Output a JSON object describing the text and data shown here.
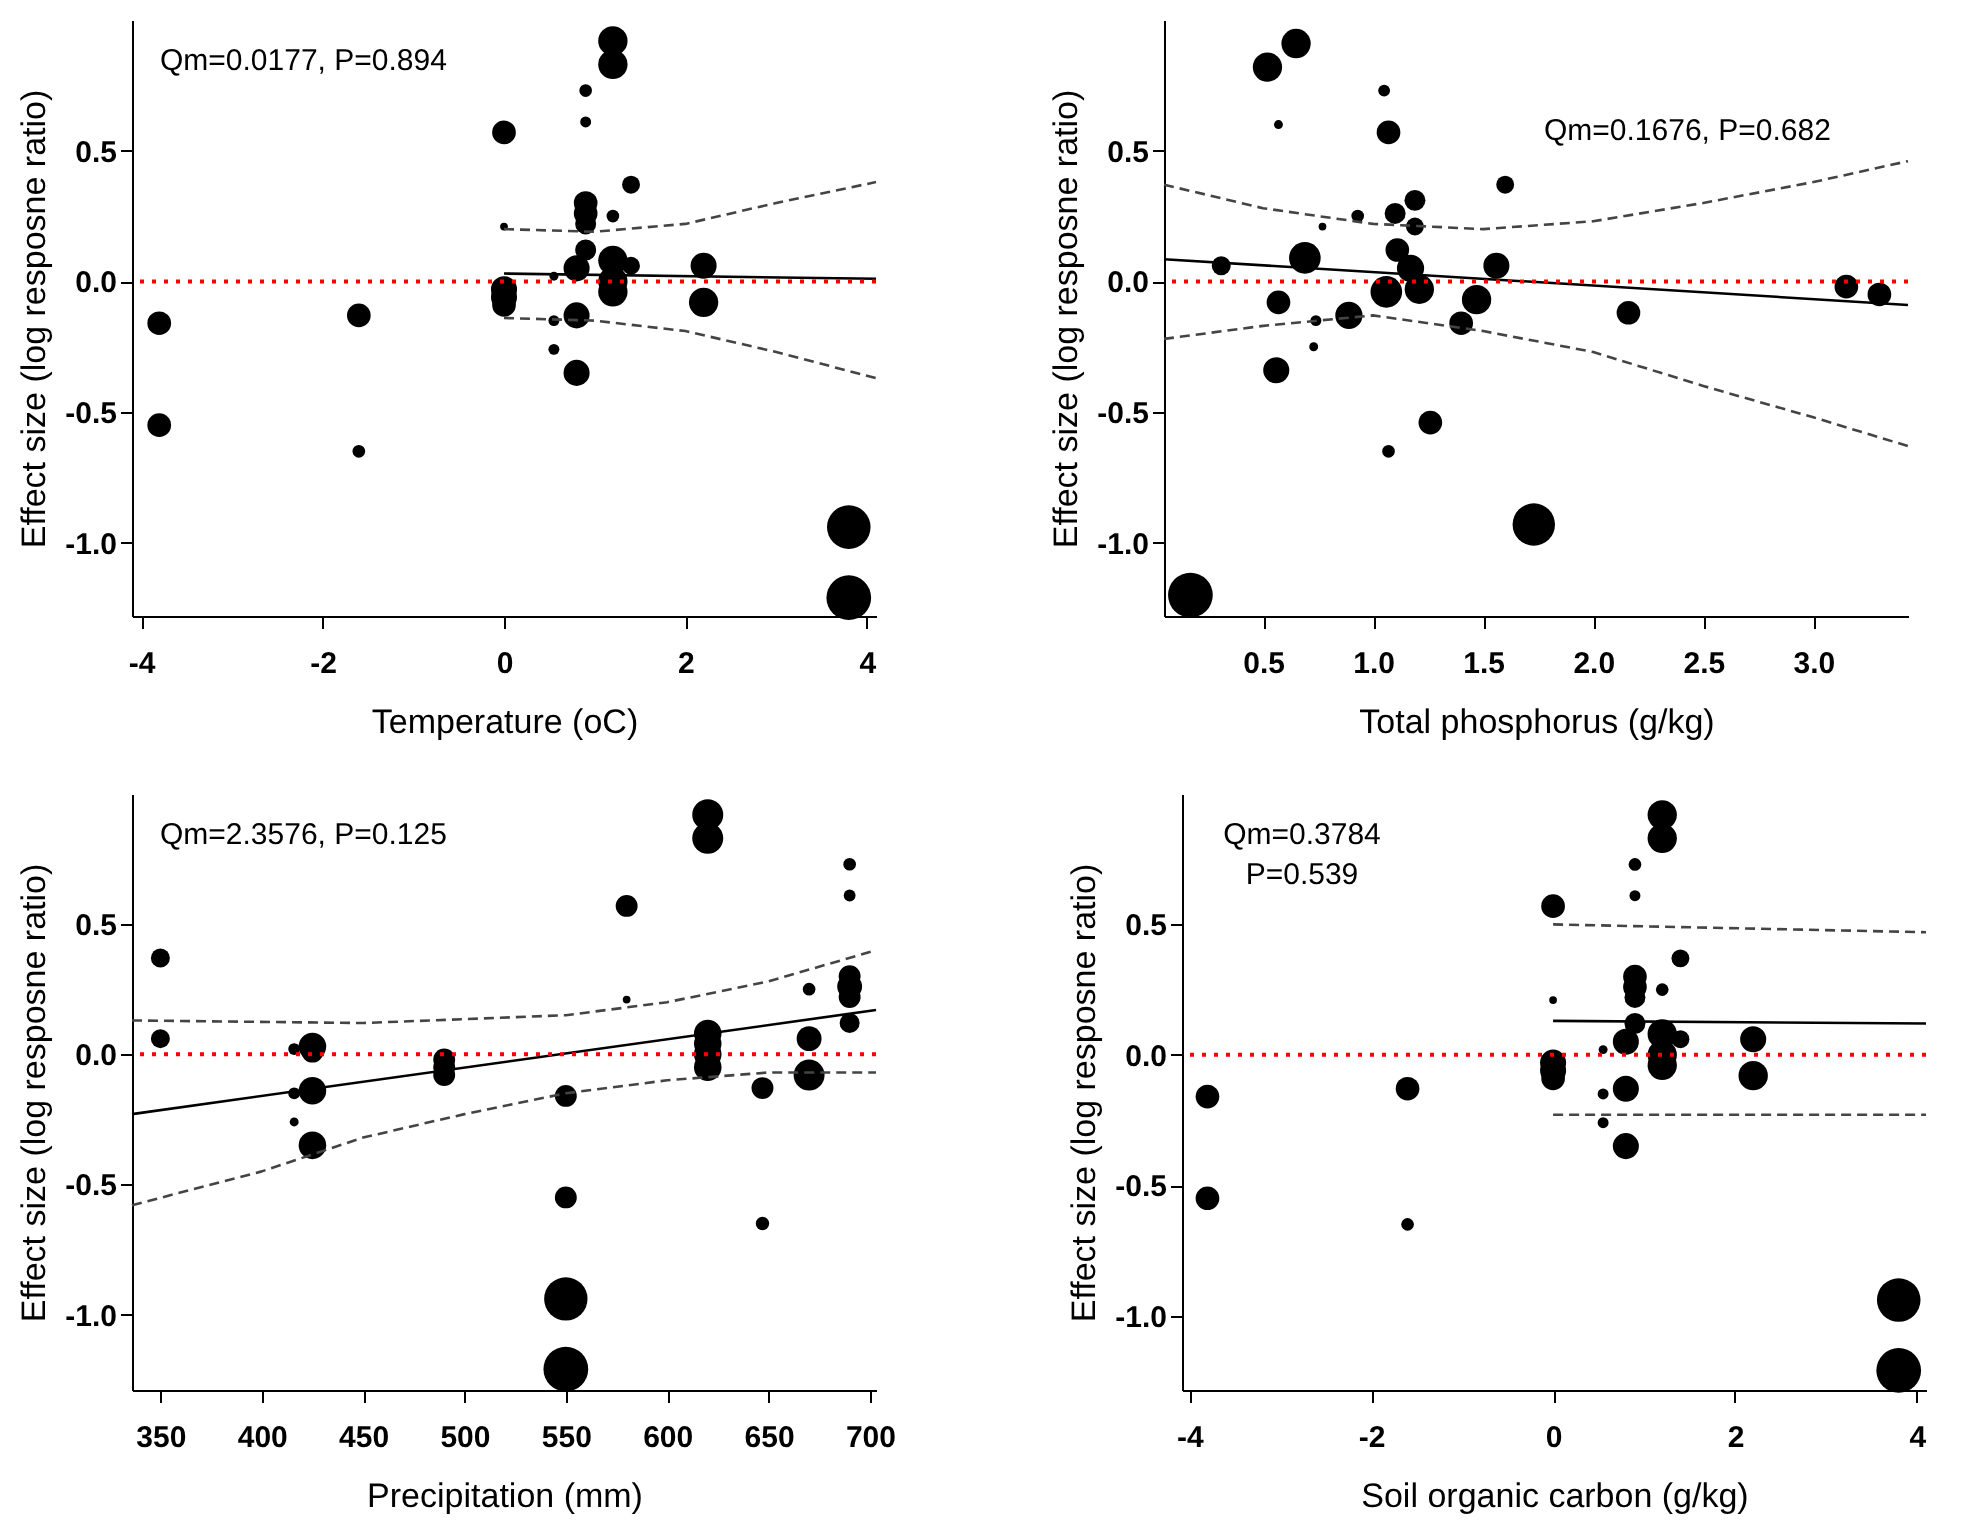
{
  "chart_data": [
    {
      "type": "bubble",
      "xlabel": "Temperature (oC)",
      "ylabel": "Effect size (log resposne ratio)",
      "annotations": [
        "Qm=0.0177, P=0.894"
      ],
      "grid": false,
      "legend": false,
      "xlim": [
        -4.1,
        4.1
      ],
      "xticks": [
        -4,
        -2,
        0,
        2,
        4
      ],
      "ylim": [
        -1.28,
        1.0
      ],
      "yticks": [
        {
          "value": -1,
          "label": "-1.0"
        },
        {
          "value": -0.5,
          "label": "-0.5"
        },
        {
          "value": 0,
          "label": "0.0"
        },
        {
          "value": 0.5,
          "label": "0.5"
        }
      ],
      "ref_lines": [
        {
          "axis": "y",
          "value": 0,
          "color": "#ff0000",
          "line_style": "dotted"
        }
      ],
      "series": [
        {
          "marker": "circle",
          "color": "#000000",
          "x": [
            -3.8,
            -3.8,
            -1.6,
            -1.6,
            0,
            0,
            0,
            0,
            0,
            0.55,
            0.55,
            0.55,
            0.8,
            0.8,
            0.8,
            0.9,
            0.9,
            0.9,
            0.9,
            0.9,
            0.9,
            1.2,
            1.2,
            1.2,
            1.2,
            1.2,
            1.2,
            1.4,
            1.4,
            2.2,
            2.2,
            3.8,
            3.8
          ],
          "values": [
            -0.16,
            -0.55,
            -0.13,
            -0.65,
            0.57,
            -0.03,
            -0.06,
            -0.09,
            0.21,
            0.02,
            -0.15,
            -0.26,
            0.05,
            -0.13,
            -0.35,
            0.3,
            0.26,
            0.22,
            0.12,
            0.73,
            0.61,
            0.92,
            0.83,
            0.08,
            0.0,
            -0.04,
            0.25,
            0.37,
            0.06,
            0.06,
            -0.08,
            -0.94,
            -1.21
          ],
          "sizes": [
            0.28,
            0.28,
            0.28,
            0.08,
            0.28,
            0.34,
            0.34,
            0.28,
            0.03,
            0.04,
            0.06,
            0.06,
            0.34,
            0.34,
            0.34,
            0.28,
            0.28,
            0.22,
            0.22,
            0.08,
            0.06,
            0.43,
            0.43,
            0.43,
            0.43,
            0.43,
            0.08,
            0.16,
            0.16,
            0.34,
            0.43,
            0.95,
            1
          ]
        },
        {
          "type": "line",
          "color": "#000000",
          "line_style": "solid",
          "x": [
            0,
            4.1
          ],
          "values": [
            0.03,
            0.01
          ]
        },
        {
          "type": "line",
          "color": "#444444",
          "line_style": "dashed",
          "x": [
            0,
            1,
            2,
            3,
            4.1
          ],
          "values": [
            0.2,
            0.19,
            0.22,
            0.3,
            0.38
          ]
        },
        {
          "type": "line",
          "color": "#444444",
          "line_style": "dashed",
          "x": [
            0,
            1,
            2,
            3,
            4.1
          ],
          "values": [
            -0.14,
            -0.15,
            -0.19,
            -0.27,
            -0.37
          ]
        }
      ]
    },
    {
      "type": "bubble",
      "xlabel": "Total phosphorus (g/kg)",
      "ylabel": "Effect size (log resposne ratio)",
      "annotations": [
        "Qm=0.1676, P=0.682"
      ],
      "grid": false,
      "legend": false,
      "xlim": [
        0.05,
        3.43
      ],
      "xticks": [
        {
          "value": 0.5,
          "label": "0.5"
        },
        {
          "value": 1,
          "label": "1.0"
        },
        {
          "value": 1.5,
          "label": "1.5"
        },
        {
          "value": 2,
          "label": "2.0"
        },
        {
          "value": 2.5,
          "label": "2.5"
        },
        {
          "value": 3,
          "label": "3.0"
        }
      ],
      "ylim": [
        -1.28,
        1.0
      ],
      "yticks": [
        {
          "value": -1,
          "label": "-1.0"
        },
        {
          "value": -0.5,
          "label": "-0.5"
        },
        {
          "value": 0,
          "label": "0.0"
        },
        {
          "value": 0.5,
          "label": "0.5"
        }
      ],
      "ref_lines": [
        {
          "axis": "y",
          "value": 0,
          "color": "#ff0000",
          "line_style": "dotted"
        }
      ],
      "series": [
        {
          "marker": "circle",
          "color": "#000000",
          "x": [
            0.17,
            0.52,
            0.65,
            0.57,
            1.05,
            1.07,
            0.31,
            0.69,
            0.57,
            0.56,
            0.74,
            0.73,
            0.77,
            0.93,
            0.89,
            1.1,
            1.19,
            1.19,
            1.11,
            1.17,
            1.06,
            1.21,
            1.07,
            1.26,
            1.47,
            1.4,
            1.56,
            1.6,
            1.73,
            2.16,
            3.15,
            3.3
          ],
          "values": [
            -1.2,
            0.82,
            0.91,
            0.6,
            0.73,
            0.57,
            0.06,
            0.09,
            -0.08,
            -0.34,
            -0.15,
            -0.25,
            0.21,
            0.25,
            -0.13,
            0.26,
            0.31,
            0.21,
            0.12,
            0.05,
            -0.04,
            -0.03,
            -0.65,
            -0.54,
            -0.07,
            -0.16,
            0.06,
            0.37,
            -0.93,
            -0.12,
            -0.02,
            -0.05
          ],
          "sizes": [
            1,
            0.43,
            0.43,
            0.04,
            0.07,
            0.28,
            0.18,
            0.5,
            0.28,
            0.34,
            0.06,
            0.04,
            0.03,
            0.08,
            0.37,
            0.22,
            0.22,
            0.16,
            0.28,
            0.37,
            0.5,
            0.43,
            0.08,
            0.28,
            0.43,
            0.28,
            0.34,
            0.16,
            0.9,
            0.28,
            0.28,
            0.28
          ]
        },
        {
          "type": "line",
          "color": "#000000",
          "line_style": "solid",
          "x": [
            0.05,
            3.43
          ],
          "values": [
            0.085,
            -0.09
          ]
        },
        {
          "type": "line",
          "color": "#444444",
          "line_style": "dashed",
          "x": [
            0.05,
            0.5,
            1.0,
            1.5,
            2.0,
            2.5,
            3.0,
            3.43
          ],
          "values": [
            0.37,
            0.28,
            0.22,
            0.2,
            0.23,
            0.3,
            0.38,
            0.46
          ]
        },
        {
          "type": "line",
          "color": "#444444",
          "line_style": "dashed",
          "x": [
            0.05,
            0.5,
            1.0,
            1.5,
            2.0,
            2.5,
            3.0,
            3.43
          ],
          "values": [
            -0.22,
            -0.17,
            -0.13,
            -0.19,
            -0.27,
            -0.4,
            -0.52,
            -0.63
          ]
        }
      ]
    },
    {
      "type": "bubble",
      "xlabel": "Precipitation (mm)",
      "ylabel": "Effect size (log resposne ratio)",
      "annotations": [
        "Qm=2.3576, P=0.125"
      ],
      "grid": false,
      "legend": false,
      "xlim": [
        336,
        703
      ],
      "xticks": [
        350,
        400,
        450,
        500,
        550,
        600,
        650,
        700
      ],
      "ylim": [
        -1.29,
        1.0
      ],
      "yticks": [
        {
          "value": -1,
          "label": "-1.0"
        },
        {
          "value": -0.5,
          "label": "-0.5"
        },
        {
          "value": 0,
          "label": "0.0"
        },
        {
          "value": 0.5,
          "label": "0.5"
        }
      ],
      "ref_lines": [
        {
          "axis": "y",
          "value": 0,
          "color": "#ff0000",
          "line_style": "dotted"
        }
      ],
      "series": [
        {
          "marker": "circle",
          "color": "#000000",
          "x": [
            350,
            350,
            416,
            416,
            416,
            425,
            425,
            425,
            425,
            490,
            490,
            490,
            550,
            550,
            550,
            550,
            580,
            580,
            620,
            620,
            620,
            620,
            620,
            620,
            647,
            647,
            670,
            670,
            670,
            690,
            690,
            690,
            690,
            690,
            690
          ],
          "values": [
            0.37,
            0.06,
            0.02,
            -0.15,
            -0.26,
            0.03,
            0.01,
            -0.14,
            -0.35,
            -0.02,
            -0.05,
            -0.08,
            -0.16,
            -0.55,
            -0.94,
            -1.21,
            0.57,
            0.21,
            0.92,
            0.83,
            0.08,
            0.04,
            0.0,
            -0.05,
            -0.13,
            -0.65,
            0.25,
            0.06,
            -0.08,
            0.73,
            0.61,
            0.3,
            0.26,
            0.22,
            0.12
          ],
          "sizes": [
            0.18,
            0.18,
            0.07,
            0.07,
            0.04,
            0.38,
            0.24,
            0.38,
            0.38,
            0.24,
            0.24,
            0.24,
            0.24,
            0.24,
            0.94,
            1,
            0.24,
            0.03,
            0.48,
            0.48,
            0.38,
            0.38,
            0.38,
            0.38,
            0.24,
            0.09,
            0.08,
            0.31,
            0.48,
            0.08,
            0.07,
            0.24,
            0.31,
            0.24,
            0.2
          ]
        },
        {
          "type": "line",
          "color": "#000000",
          "line_style": "solid",
          "x": [
            336,
            703
          ],
          "values": [
            -0.23,
            0.17
          ]
        },
        {
          "type": "line",
          "color": "#444444",
          "line_style": "dashed",
          "x": [
            336,
            450,
            550,
            600,
            650,
            703
          ],
          "values": [
            0.13,
            0.12,
            0.15,
            0.2,
            0.28,
            0.4
          ]
        },
        {
          "type": "line",
          "color": "#444444",
          "line_style": "dashed",
          "x": [
            336,
            400,
            450,
            500,
            550,
            600,
            650,
            703
          ],
          "values": [
            -0.58,
            -0.45,
            -0.32,
            -0.23,
            -0.15,
            -0.1,
            -0.07,
            -0.07
          ]
        }
      ]
    },
    {
      "type": "bubble",
      "xlabel": "Soil organic carbon (g/kg)",
      "ylabel": "Effect size (log resposne ratio)",
      "annotations": [
        "Qm=0.3784",
        "P=0.539"
      ],
      "grid": false,
      "legend": false,
      "xlim": [
        -4.08,
        4.1
      ],
      "xticks": [
        -4,
        -2,
        0,
        2,
        4
      ],
      "ylim": [
        -1.285,
        1.0
      ],
      "yticks": [
        {
          "value": -1,
          "label": "-1.0"
        },
        {
          "value": -0.5,
          "label": "-0.5"
        },
        {
          "value": 0,
          "label": "0.0"
        },
        {
          "value": 0.5,
          "label": "0.5"
        }
      ],
      "ref_lines": [
        {
          "axis": "y",
          "value": 0,
          "color": "#ff0000",
          "line_style": "dotted"
        }
      ],
      "series": [
        {
          "marker": "circle",
          "color": "#000000",
          "x": [
            -3.8,
            -3.8,
            -1.6,
            -1.6,
            0,
            0,
            0,
            0,
            0,
            0.55,
            0.55,
            0.55,
            0.8,
            0.8,
            0.8,
            0.9,
            0.9,
            0.9,
            0.9,
            0.9,
            0.9,
            1.2,
            1.2,
            1.2,
            1.2,
            1.2,
            1.2,
            1.4,
            1.4,
            2.2,
            2.2,
            3.8,
            3.8
          ],
          "values": [
            -0.16,
            -0.55,
            -0.13,
            -0.65,
            0.57,
            -0.03,
            -0.06,
            -0.09,
            0.21,
            0.02,
            -0.15,
            -0.26,
            0.05,
            -0.13,
            -0.35,
            0.3,
            0.26,
            0.22,
            0.12,
            0.73,
            0.61,
            0.92,
            0.83,
            0.08,
            0.0,
            -0.04,
            0.25,
            0.37,
            0.06,
            0.06,
            -0.08,
            -0.94,
            -1.21
          ],
          "sizes": [
            0.28,
            0.28,
            0.28,
            0.08,
            0.28,
            0.34,
            0.34,
            0.28,
            0.03,
            0.04,
            0.06,
            0.06,
            0.34,
            0.34,
            0.34,
            0.28,
            0.28,
            0.22,
            0.22,
            0.08,
            0.06,
            0.43,
            0.43,
            0.43,
            0.43,
            0.43,
            0.08,
            0.16,
            0.16,
            0.34,
            0.43,
            0.95,
            1
          ]
        },
        {
          "type": "line",
          "color": "#000000",
          "line_style": "solid",
          "x": [
            0,
            4.1
          ],
          "values": [
            0.13,
            0.12
          ]
        },
        {
          "type": "line",
          "color": "#444444",
          "line_style": "dashed",
          "x": [
            0,
            4.1
          ],
          "values": [
            0.5,
            0.47
          ]
        },
        {
          "type": "line",
          "color": "#444444",
          "line_style": "dashed",
          "x": [
            0,
            4.1
          ],
          "values": [
            -0.23,
            -0.23
          ]
        }
      ]
    }
  ]
}
